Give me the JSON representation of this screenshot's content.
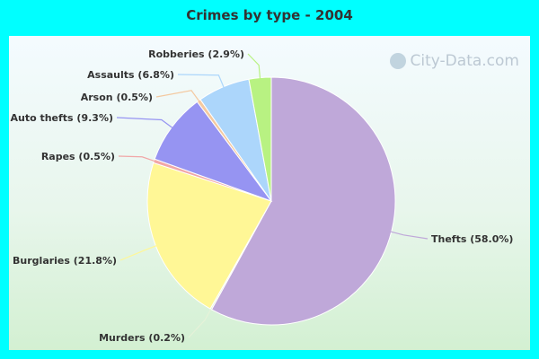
{
  "chart_data": {
    "type": "pie",
    "title": "Crimes by type - 2004",
    "slices": [
      {
        "label": "Thefts (58.0%)",
        "value": 58.0,
        "color": "#bfa8d9"
      },
      {
        "label": "Murders (0.2%)",
        "value": 0.2,
        "color": "#e6f2d9"
      },
      {
        "label": "Burglaries (21.8%)",
        "value": 21.8,
        "color": "#fff796"
      },
      {
        "label": "Rapes (0.5%)",
        "value": 0.5,
        "color": "#f1a7a7"
      },
      {
        "label": "Auto thefts (9.3%)",
        "value": 9.3,
        "color": "#9694f2"
      },
      {
        "label": "Arson (0.5%)",
        "value": 0.5,
        "color": "#f4c9a0"
      },
      {
        "label": "Assaults (6.8%)",
        "value": 6.8,
        "color": "#acd6fb"
      },
      {
        "label": "Robberies (2.9%)",
        "value": 2.9,
        "color": "#b8f282"
      }
    ]
  },
  "watermark": "City-Data.com"
}
